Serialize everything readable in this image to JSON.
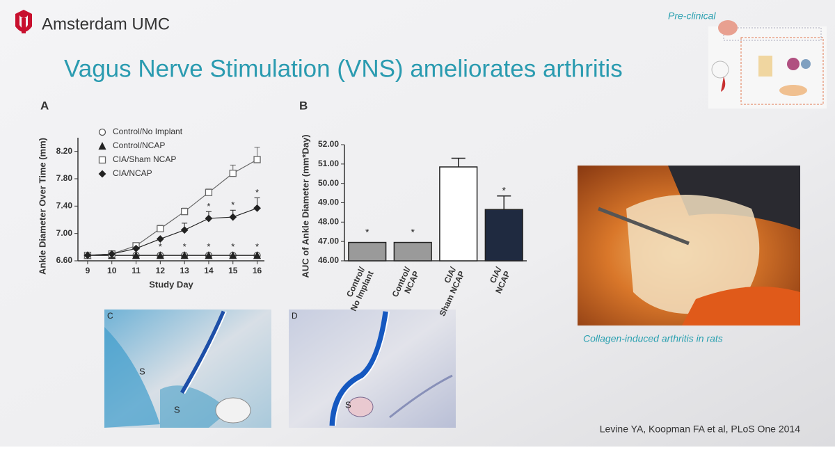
{
  "slide": {
    "logo": "Amsterdam UMC",
    "title": "Vagus Nerve Stimulation (VNS) ameliorates arthritis",
    "tag": "Pre-clinical",
    "panels": [
      "A",
      "B",
      "C",
      "D"
    ],
    "histology_labels": {
      "C": [
        "S",
        "S"
      ],
      "D": [
        "S"
      ]
    },
    "caption": "Collagen-induced arthritis in rats",
    "citation": "Levine YA, Koopman FA et al, PLoS One 2014"
  },
  "chart_data": [
    {
      "type": "line",
      "xlabel": "Study Day",
      "ylabel": "Ankle Diameter Over Time (mm)",
      "x": [
        9,
        10,
        11,
        12,
        13,
        14,
        15,
        16
      ],
      "xlim": [
        8.6,
        16.3
      ],
      "xticks": [
        9,
        10,
        11,
        12,
        13,
        14,
        15,
        16
      ],
      "ylim": [
        6.6,
        8.4
      ],
      "yticks": [
        {
          "value": 6.6,
          "label": "6.60"
        },
        {
          "value": 7.0,
          "label": "7.00"
        },
        {
          "value": 7.4,
          "label": "7.40"
        },
        {
          "value": 7.8,
          "label": "7.80"
        },
        {
          "value": 8.2,
          "label": "8.20"
        }
      ],
      "series": [
        {
          "name": "Control/No Implant",
          "marker": "circle",
          "color": "#555555",
          "values": [
            6.68,
            6.68,
            6.68,
            6.68,
            6.68,
            6.68,
            6.68,
            6.68
          ]
        },
        {
          "name": "Control/NCAP",
          "marker": "triangle",
          "color": "#222222",
          "values": [
            6.68,
            6.68,
            6.68,
            6.68,
            6.68,
            6.68,
            6.68,
            6.68
          ]
        },
        {
          "name": "CIA/Sham NCAP",
          "marker": "square",
          "color": "#666666",
          "values": [
            6.68,
            6.7,
            6.82,
            7.07,
            7.32,
            7.6,
            7.88,
            8.08
          ],
          "errors": [
            null,
            null,
            null,
            0.05,
            0.05,
            0.05,
            0.12,
            0.18
          ]
        },
        {
          "name": "CIA/NCAP",
          "marker": "diamond",
          "color": "#222222",
          "values": [
            6.68,
            6.7,
            6.78,
            6.92,
            7.05,
            7.22,
            7.24,
            7.37
          ],
          "errors": [
            null,
            null,
            null,
            null,
            0.1,
            0.1,
            0.1,
            0.15
          ]
        }
      ],
      "annotations": [
        {
          "text": "*",
          "x": 12,
          "y": 6.8
        },
        {
          "text": "*",
          "x": 13,
          "y": 6.8
        },
        {
          "text": "*",
          "x": 14,
          "y": 6.8
        },
        {
          "text": "*",
          "x": 15,
          "y": 6.8
        },
        {
          "text": "*",
          "x": 16,
          "y": 6.8
        },
        {
          "text": "*",
          "x": 14,
          "y": 7.39
        },
        {
          "text": "*",
          "x": 15,
          "y": 7.41
        },
        {
          "text": "*",
          "x": 16,
          "y": 7.59
        }
      ]
    },
    {
      "type": "bar",
      "ylabel": "AUC of Ankle Diameter (mm*Day)",
      "categories": [
        "Control/\nNo Implant",
        "Control/\nNCAP",
        "CIA/\nSham NCAP",
        "CIA/\nNCAP"
      ],
      "values": [
        46.95,
        46.95,
        50.85,
        48.65
      ],
      "errors": [
        null,
        null,
        0.45,
        0.7
      ],
      "colors": [
        "#9a9a9a",
        "#9a9a9a",
        "#ffffff",
        "#1f2a40"
      ],
      "ylim": [
        46,
        52
      ],
      "yticks": [
        {
          "value": 46,
          "label": "46.00"
        },
        {
          "value": 47,
          "label": "47.00"
        },
        {
          "value": 48,
          "label": "48.00"
        },
        {
          "value": 49,
          "label": "49.00"
        },
        {
          "value": 50,
          "label": "50.00"
        },
        {
          "value": 51,
          "label": "51.00"
        },
        {
          "value": 52,
          "label": "52.00"
        }
      ],
      "annotations": [
        {
          "text": "*",
          "category": 0,
          "y": 47.45
        },
        {
          "text": "*",
          "category": 1,
          "y": 47.45
        },
        {
          "text": "*",
          "category": 3,
          "y": 49.6
        }
      ]
    }
  ]
}
